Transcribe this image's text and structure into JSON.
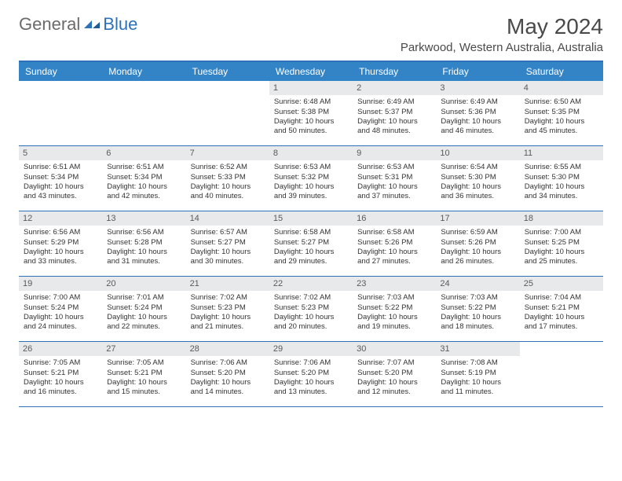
{
  "logo": {
    "text1": "General",
    "text2": "Blue"
  },
  "title": "May 2024",
  "location": "Parkwood, Western Australia, Australia",
  "colors": {
    "header_bg": "#3384c6",
    "header_text": "#ffffff",
    "border": "#2d72b8",
    "date_bg": "#e8e9ea",
    "text": "#333333",
    "title_color": "#4a4a4a",
    "logo_gray": "#6b6b6b",
    "logo_blue": "#2d72b8",
    "background": "#ffffff"
  },
  "day_names": [
    "Sunday",
    "Monday",
    "Tuesday",
    "Wednesday",
    "Thursday",
    "Friday",
    "Saturday"
  ],
  "weeks": [
    [
      {
        "n": "",
        "s": "",
        "ss": "",
        "d1": "",
        "d2": ""
      },
      {
        "n": "",
        "s": "",
        "ss": "",
        "d1": "",
        "d2": ""
      },
      {
        "n": "",
        "s": "",
        "ss": "",
        "d1": "",
        "d2": ""
      },
      {
        "n": "1",
        "s": "Sunrise: 6:48 AM",
        "ss": "Sunset: 5:38 PM",
        "d1": "Daylight: 10 hours",
        "d2": "and 50 minutes."
      },
      {
        "n": "2",
        "s": "Sunrise: 6:49 AM",
        "ss": "Sunset: 5:37 PM",
        "d1": "Daylight: 10 hours",
        "d2": "and 48 minutes."
      },
      {
        "n": "3",
        "s": "Sunrise: 6:49 AM",
        "ss": "Sunset: 5:36 PM",
        "d1": "Daylight: 10 hours",
        "d2": "and 46 minutes."
      },
      {
        "n": "4",
        "s": "Sunrise: 6:50 AM",
        "ss": "Sunset: 5:35 PM",
        "d1": "Daylight: 10 hours",
        "d2": "and 45 minutes."
      }
    ],
    [
      {
        "n": "5",
        "s": "Sunrise: 6:51 AM",
        "ss": "Sunset: 5:34 PM",
        "d1": "Daylight: 10 hours",
        "d2": "and 43 minutes."
      },
      {
        "n": "6",
        "s": "Sunrise: 6:51 AM",
        "ss": "Sunset: 5:34 PM",
        "d1": "Daylight: 10 hours",
        "d2": "and 42 minutes."
      },
      {
        "n": "7",
        "s": "Sunrise: 6:52 AM",
        "ss": "Sunset: 5:33 PM",
        "d1": "Daylight: 10 hours",
        "d2": "and 40 minutes."
      },
      {
        "n": "8",
        "s": "Sunrise: 6:53 AM",
        "ss": "Sunset: 5:32 PM",
        "d1": "Daylight: 10 hours",
        "d2": "and 39 minutes."
      },
      {
        "n": "9",
        "s": "Sunrise: 6:53 AM",
        "ss": "Sunset: 5:31 PM",
        "d1": "Daylight: 10 hours",
        "d2": "and 37 minutes."
      },
      {
        "n": "10",
        "s": "Sunrise: 6:54 AM",
        "ss": "Sunset: 5:30 PM",
        "d1": "Daylight: 10 hours",
        "d2": "and 36 minutes."
      },
      {
        "n": "11",
        "s": "Sunrise: 6:55 AM",
        "ss": "Sunset: 5:30 PM",
        "d1": "Daylight: 10 hours",
        "d2": "and 34 minutes."
      }
    ],
    [
      {
        "n": "12",
        "s": "Sunrise: 6:56 AM",
        "ss": "Sunset: 5:29 PM",
        "d1": "Daylight: 10 hours",
        "d2": "and 33 minutes."
      },
      {
        "n": "13",
        "s": "Sunrise: 6:56 AM",
        "ss": "Sunset: 5:28 PM",
        "d1": "Daylight: 10 hours",
        "d2": "and 31 minutes."
      },
      {
        "n": "14",
        "s": "Sunrise: 6:57 AM",
        "ss": "Sunset: 5:27 PM",
        "d1": "Daylight: 10 hours",
        "d2": "and 30 minutes."
      },
      {
        "n": "15",
        "s": "Sunrise: 6:58 AM",
        "ss": "Sunset: 5:27 PM",
        "d1": "Daylight: 10 hours",
        "d2": "and 29 minutes."
      },
      {
        "n": "16",
        "s": "Sunrise: 6:58 AM",
        "ss": "Sunset: 5:26 PM",
        "d1": "Daylight: 10 hours",
        "d2": "and 27 minutes."
      },
      {
        "n": "17",
        "s": "Sunrise: 6:59 AM",
        "ss": "Sunset: 5:26 PM",
        "d1": "Daylight: 10 hours",
        "d2": "and 26 minutes."
      },
      {
        "n": "18",
        "s": "Sunrise: 7:00 AM",
        "ss": "Sunset: 5:25 PM",
        "d1": "Daylight: 10 hours",
        "d2": "and 25 minutes."
      }
    ],
    [
      {
        "n": "19",
        "s": "Sunrise: 7:00 AM",
        "ss": "Sunset: 5:24 PM",
        "d1": "Daylight: 10 hours",
        "d2": "and 24 minutes."
      },
      {
        "n": "20",
        "s": "Sunrise: 7:01 AM",
        "ss": "Sunset: 5:24 PM",
        "d1": "Daylight: 10 hours",
        "d2": "and 22 minutes."
      },
      {
        "n": "21",
        "s": "Sunrise: 7:02 AM",
        "ss": "Sunset: 5:23 PM",
        "d1": "Daylight: 10 hours",
        "d2": "and 21 minutes."
      },
      {
        "n": "22",
        "s": "Sunrise: 7:02 AM",
        "ss": "Sunset: 5:23 PM",
        "d1": "Daylight: 10 hours",
        "d2": "and 20 minutes."
      },
      {
        "n": "23",
        "s": "Sunrise: 7:03 AM",
        "ss": "Sunset: 5:22 PM",
        "d1": "Daylight: 10 hours",
        "d2": "and 19 minutes."
      },
      {
        "n": "24",
        "s": "Sunrise: 7:03 AM",
        "ss": "Sunset: 5:22 PM",
        "d1": "Daylight: 10 hours",
        "d2": "and 18 minutes."
      },
      {
        "n": "25",
        "s": "Sunrise: 7:04 AM",
        "ss": "Sunset: 5:21 PM",
        "d1": "Daylight: 10 hours",
        "d2": "and 17 minutes."
      }
    ],
    [
      {
        "n": "26",
        "s": "Sunrise: 7:05 AM",
        "ss": "Sunset: 5:21 PM",
        "d1": "Daylight: 10 hours",
        "d2": "and 16 minutes."
      },
      {
        "n": "27",
        "s": "Sunrise: 7:05 AM",
        "ss": "Sunset: 5:21 PM",
        "d1": "Daylight: 10 hours",
        "d2": "and 15 minutes."
      },
      {
        "n": "28",
        "s": "Sunrise: 7:06 AM",
        "ss": "Sunset: 5:20 PM",
        "d1": "Daylight: 10 hours",
        "d2": "and 14 minutes."
      },
      {
        "n": "29",
        "s": "Sunrise: 7:06 AM",
        "ss": "Sunset: 5:20 PM",
        "d1": "Daylight: 10 hours",
        "d2": "and 13 minutes."
      },
      {
        "n": "30",
        "s": "Sunrise: 7:07 AM",
        "ss": "Sunset: 5:20 PM",
        "d1": "Daylight: 10 hours",
        "d2": "and 12 minutes."
      },
      {
        "n": "31",
        "s": "Sunrise: 7:08 AM",
        "ss": "Sunset: 5:19 PM",
        "d1": "Daylight: 10 hours",
        "d2": "and 11 minutes."
      },
      {
        "n": "",
        "s": "",
        "ss": "",
        "d1": "",
        "d2": ""
      }
    ]
  ]
}
